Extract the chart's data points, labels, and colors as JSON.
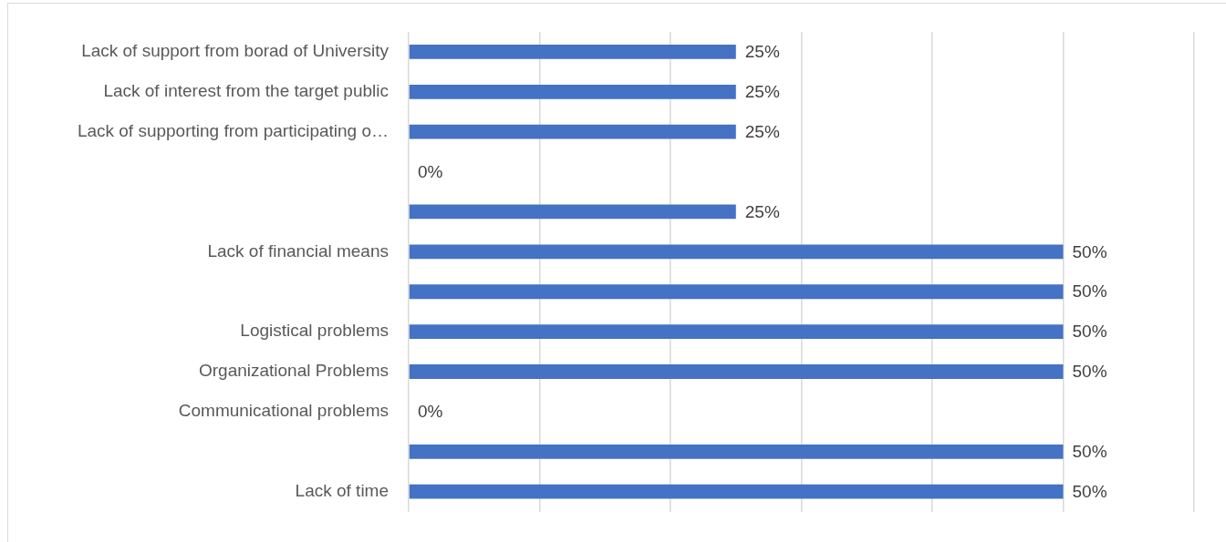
{
  "chart_data": {
    "type": "bar",
    "orientation": "horizontal",
    "categories": [
      "Lack of support from borad of University",
      "Lack of interest from the target public",
      "Lack of supporting from participating o…",
      null,
      null,
      "Lack of financial means",
      null,
      "Logistical problems",
      "Organizational Problems",
      "Communicational problems",
      null,
      "Lack of time"
    ],
    "values": [
      25,
      25,
      25,
      0,
      25,
      50,
      50,
      50,
      50,
      0,
      50,
      50
    ],
    "value_labels": [
      "25%",
      "25%",
      "25%",
      "0%",
      "25%",
      "50%",
      "50%",
      "50%",
      "50%",
      "0%",
      "50%",
      "50%"
    ],
    "color": "#4472c4",
    "xlim": [
      0,
      60
    ],
    "xticks": [
      {
        "value": 0,
        "label": null
      },
      {
        "value": 10,
        "label": null
      },
      {
        "value": 20,
        "label": null
      },
      {
        "value": 30,
        "label": null
      },
      {
        "value": 40,
        "label": null
      },
      {
        "value": 50,
        "label": null
      },
      {
        "value": 60,
        "label": null
      }
    ],
    "grid": "x",
    "tick_labels": "y",
    "legend": false
  }
}
